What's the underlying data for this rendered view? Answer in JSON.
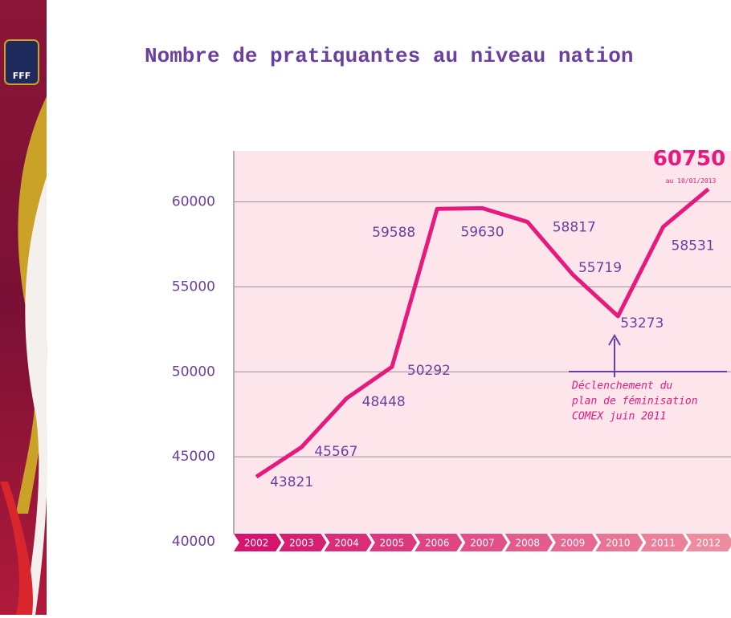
{
  "logo": "FFF",
  "chart_data": {
    "type": "line",
    "title": "Nombre de pratiquantes au niveau nation",
    "categories": [
      "2002",
      "2003",
      "2004",
      "2005",
      "2006",
      "2007",
      "2008",
      "2009",
      "2010",
      "2011",
      "2012"
    ],
    "series": [
      {
        "name": "pratiquantes",
        "color": "#e8197c",
        "values": [
          43821,
          45567,
          48448,
          50292,
          59588,
          59630,
          58817,
          55719,
          53273,
          58531,
          60750
        ]
      }
    ],
    "last_point_note": "au 10/01/2013",
    "annotation": [
      "Déclenchement du",
      "plan de féminisation",
      "COMEX juin 2011"
    ],
    "ylim": [
      40000,
      63000
    ],
    "yticks": [
      40000,
      45000,
      50000,
      55000,
      60000
    ],
    "grid": true
  }
}
